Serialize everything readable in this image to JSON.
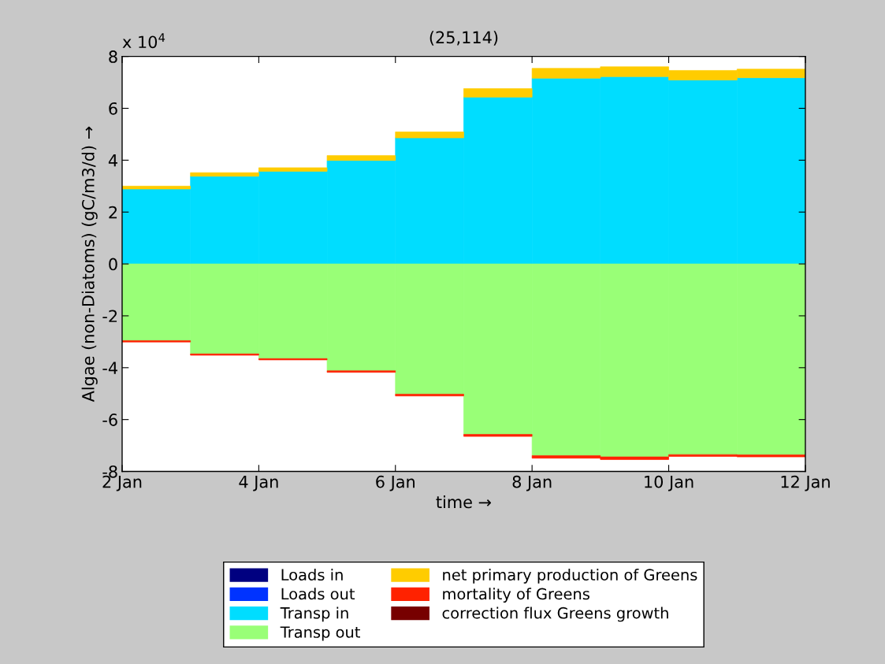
{
  "chart_data": {
    "type": "bar",
    "stacked": true,
    "title": "(25,114)",
    "xlabel": "time →",
    "ylabel": "Algae (non-Diatoms) (gC/m3/d) →",
    "annotations": [
      "x 10$^{4}$"
    ],
    "x": [
      "--01-02T12:00",
      "--01-03T12:00",
      "--01-04T12:00",
      "--01-05T12:00",
      "--01-06T12:00",
      "--01-07T12:00",
      "--01-08T12:00",
      "--01-09T12:00",
      "--01-10T12:00",
      "--01-11T12:00"
    ],
    "series": [
      {
        "name": "Loads in",
        "color": "#000080",
        "values": [
          null,
          null,
          null,
          null,
          null,
          null,
          null,
          null,
          null,
          null
        ]
      },
      {
        "name": "Loads out",
        "color": "#0033ff",
        "values": [
          null,
          null,
          null,
          null,
          null,
          null,
          null,
          null,
          null,
          null
        ]
      },
      {
        "name": "Transp in",
        "color": "#00ddff",
        "values": [
          2.89,
          3.38,
          3.57,
          3.99,
          4.86,
          6.43,
          7.16,
          7.22,
          7.09,
          7.18
        ]
      },
      {
        "name": "Transp out",
        "color": "#99ff77",
        "values": [
          -2.96,
          -3.47,
          -3.65,
          -4.12,
          -5.02,
          -6.57,
          -7.39,
          -7.44,
          -7.35,
          -7.36
        ]
      },
      {
        "name": "net primary production of Greens",
        "color": "#ffcc00",
        "values": [
          0.11,
          0.14,
          0.14,
          0.19,
          0.23,
          0.33,
          0.38,
          0.38,
          0.37,
          0.33
        ]
      },
      {
        "name": "mortality of Greens",
        "color": "#ff2200",
        "values": [
          -0.05,
          -0.05,
          -0.05,
          -0.06,
          -0.07,
          -0.08,
          -0.1,
          -0.1,
          -0.07,
          -0.08
        ]
      },
      {
        "name": "correction flux Greens growth",
        "color": "#770000",
        "values": [
          null,
          null,
          null,
          null,
          null,
          null,
          null,
          null,
          null,
          null
        ]
      }
    ],
    "xlim": [
      "--01-02",
      "--01-12"
    ],
    "xticks": [
      {
        "value": "--01-02",
        "label": "2 Jan"
      },
      {
        "value": "--01-04",
        "label": "4 Jan"
      },
      {
        "value": "--01-06",
        "label": "6 Jan"
      },
      {
        "value": "--01-08",
        "label": "8 Jan"
      },
      {
        "value": "--01-10",
        "label": "10 Jan"
      },
      {
        "value": "--01-12",
        "label": "12 Jan"
      }
    ],
    "ylim": [
      -8,
      8
    ],
    "yticks": [
      -8,
      -6,
      -4,
      -2,
      0,
      2,
      4,
      6,
      8
    ],
    "legend": "bottom",
    "grid": false
  }
}
